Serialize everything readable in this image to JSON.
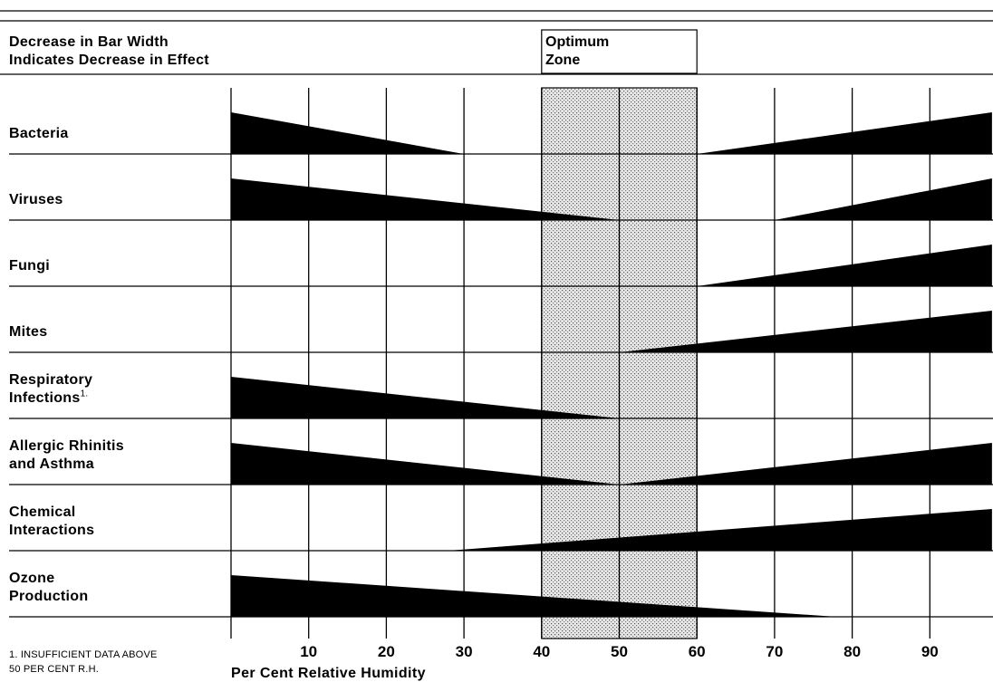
{
  "header": {
    "legend_line1": "Decrease in Bar Width",
    "legend_line2": "Indicates Decrease in Effect",
    "optimum_line1": "Optimum",
    "optimum_line2": "Zone"
  },
  "footnote": {
    "line1": "1. INSUFFICIENT DATA ABOVE",
    "line2": "50 PER CENT R.H."
  },
  "colors": {
    "bar": "#000000",
    "zone_fill": "#d9d9d9",
    "line": "#000000"
  },
  "chart_data": {
    "type": "bar",
    "xlabel": "Per Cent Relative Humidity",
    "xlim": [
      0,
      98
    ],
    "xticks": [
      10,
      20,
      30,
      40,
      50,
      60,
      70,
      80,
      90
    ],
    "optimum_zone": [
      40,
      60
    ],
    "categories": [
      {
        "name": "Bacteria",
        "lines": [
          "Bacteria"
        ],
        "footnote_mark": "",
        "segments": [
          {
            "start": 0,
            "end": 30,
            "peak": "start",
            "max_width": 1.0
          },
          {
            "start": 60,
            "end": 98,
            "peak": "end",
            "max_width": 1.0
          }
        ]
      },
      {
        "name": "Viruses",
        "lines": [
          "Viruses"
        ],
        "footnote_mark": "",
        "segments": [
          {
            "start": 0,
            "end": 50,
            "peak": "start",
            "max_width": 1.0
          },
          {
            "start": 70,
            "end": 98,
            "peak": "end",
            "max_width": 1.0
          }
        ]
      },
      {
        "name": "Fungi",
        "lines": [
          "Fungi"
        ],
        "footnote_mark": "",
        "segments": [
          {
            "start": 60,
            "end": 98,
            "peak": "end",
            "max_width": 1.0
          }
        ]
      },
      {
        "name": "Mites",
        "lines": [
          "Mites"
        ],
        "footnote_mark": "",
        "segments": [
          {
            "start": 50,
            "end": 98,
            "peak": "end",
            "max_width": 1.0
          }
        ]
      },
      {
        "name": "Respiratory Infections",
        "lines": [
          "Respiratory",
          "Infections"
        ],
        "footnote_mark": "1.",
        "segments": [
          {
            "start": 0,
            "end": 50,
            "peak": "start",
            "max_width": 1.0
          }
        ]
      },
      {
        "name": "Allergic Rhinitis and Asthma",
        "lines": [
          "Allergic Rhinitis",
          "and Asthma"
        ],
        "footnote_mark": "",
        "segments": [
          {
            "start": 0,
            "end": 50,
            "peak": "start",
            "max_width": 1.0
          },
          {
            "start": 50,
            "end": 98,
            "peak": "end",
            "max_width": 1.0
          }
        ]
      },
      {
        "name": "Chemical Interactions",
        "lines": [
          "Chemical",
          "Interactions"
        ],
        "footnote_mark": "",
        "segments": [
          {
            "start": 28,
            "end": 98,
            "peak": "end",
            "max_width": 1.0
          }
        ]
      },
      {
        "name": "Ozone Production",
        "lines": [
          "Ozone",
          "Production"
        ],
        "footnote_mark": "",
        "segments": [
          {
            "start": 0,
            "end": 78,
            "peak": "start",
            "max_width": 1.0
          }
        ]
      }
    ]
  }
}
